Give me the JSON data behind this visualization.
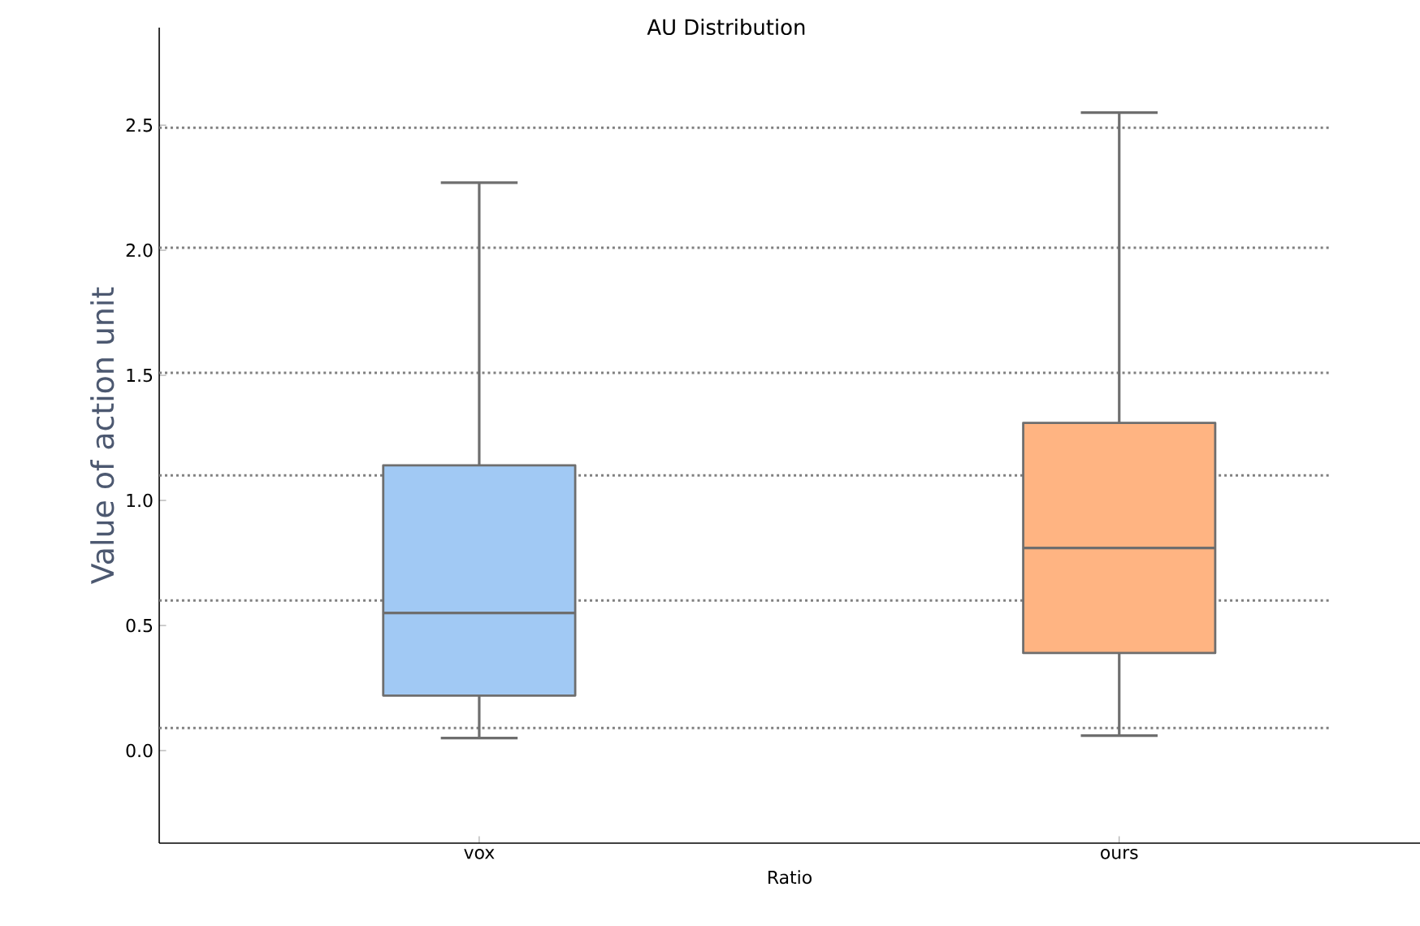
{
  "chart_data": {
    "type": "box",
    "title": "AU Distribution",
    "xlabel": "Ratio",
    "ylabel": "Value of action unit",
    "categories": [
      "vox",
      "ours"
    ],
    "colors": [
      "#a1c9f4",
      "#ffb482"
    ],
    "boxes": [
      {
        "low": 0.05,
        "q1": 0.22,
        "median": 0.55,
        "q3": 1.14,
        "high": 2.27
      },
      {
        "low": 0.06,
        "q1": 0.39,
        "median": 0.81,
        "q3": 1.31,
        "high": 2.55
      }
    ],
    "ylim": [
      -0.37,
      2.89
    ],
    "yticks": [
      {
        "value": 0,
        "label": "0.0"
      },
      {
        "value": 0.5,
        "label": "0.5"
      },
      {
        "value": 1,
        "label": "1.0"
      },
      {
        "value": 1.5,
        "label": "1.5"
      },
      {
        "value": 2,
        "label": "2.0"
      },
      {
        "value": 2.5,
        "label": "2.5"
      }
    ],
    "ref_lines": [
      {
        "axis": "y",
        "value": 0.09,
        "color": "#808080",
        "line_style": "dotted"
      },
      {
        "axis": "y",
        "value": 0.6,
        "color": "#808080",
        "line_style": "dotted"
      },
      {
        "axis": "y",
        "value": 1.1,
        "color": "#808080",
        "line_style": "dotted"
      },
      {
        "axis": "y",
        "value": 1.51,
        "color": "#808080",
        "line_style": "dotted"
      },
      {
        "axis": "y",
        "value": 2.01,
        "color": "#808080",
        "line_style": "dotted"
      },
      {
        "axis": "y",
        "value": 2.49,
        "color": "#808080",
        "line_style": "dotted"
      }
    ]
  }
}
